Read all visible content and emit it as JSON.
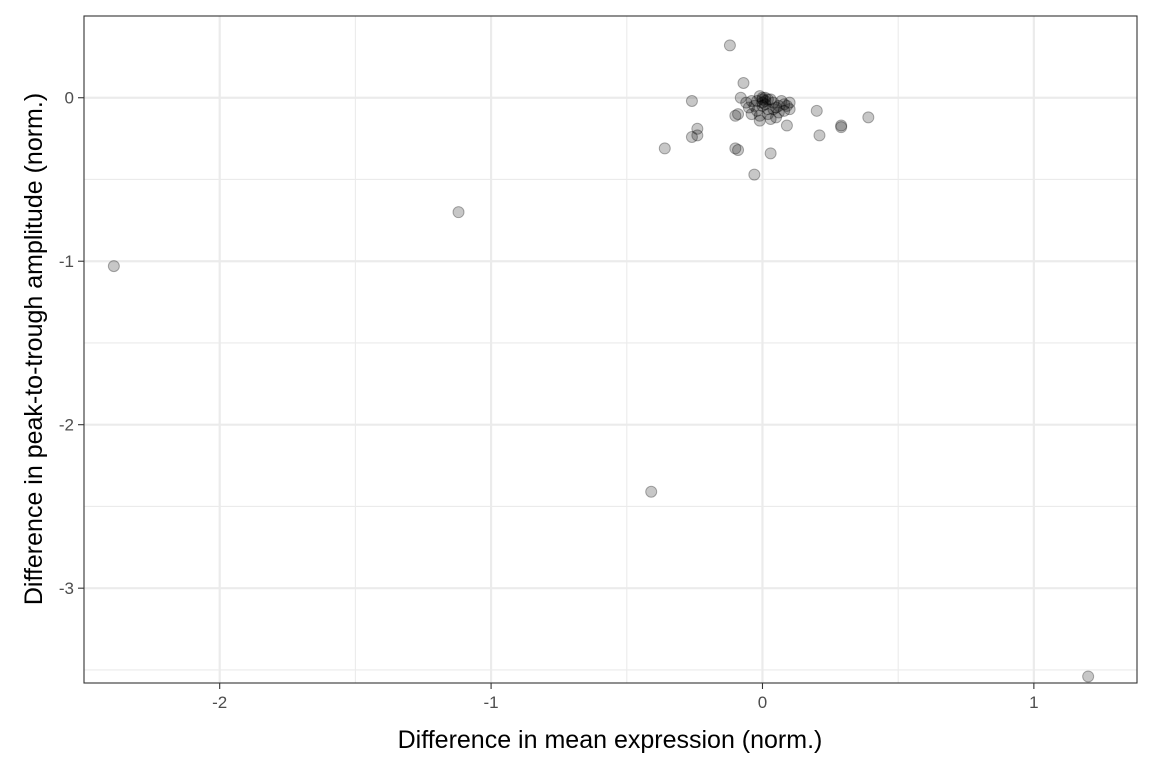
{
  "chart_data": {
    "type": "scatter",
    "title": "",
    "xlabel": "Difference in mean expression (norm.)",
    "ylabel": "Difference in peak-to-trough amplitude (norm.)",
    "xlim": [
      -2.5,
      1.38
    ],
    "ylim": [
      -3.58,
      0.5
    ],
    "x_ticks": [
      -2,
      -1,
      0,
      1
    ],
    "x_tick_labels": [
      "-2",
      "-1",
      "0",
      "1"
    ],
    "y_ticks": [
      0,
      -1,
      -2,
      -3
    ],
    "y_tick_labels": [
      "0",
      "-1",
      "-2",
      "-3"
    ],
    "x_minor_breaks": [
      -2.5,
      -1.5,
      -0.5,
      0.5
    ],
    "y_minor_breaks": [
      0.5,
      -0.5,
      -1.5,
      -2.5,
      -3.5
    ],
    "grid": true,
    "theme": "bw",
    "colors": {
      "point_fill": "#000000",
      "point_opacity": "0.22",
      "grid": "#ebebeb",
      "border": "#333333"
    },
    "series": [
      {
        "points": [
          [
            -2.39,
            -1.03
          ],
          [
            -1.12,
            -0.7
          ],
          [
            -0.41,
            -2.41
          ],
          [
            1.2,
            -3.54
          ],
          [
            -0.12,
            0.32
          ],
          [
            -0.07,
            0.09
          ],
          [
            -0.26,
            -0.02
          ],
          [
            -0.24,
            -0.19
          ],
          [
            -0.26,
            -0.24
          ],
          [
            -0.24,
            -0.23
          ],
          [
            -0.36,
            -0.31
          ],
          [
            -0.1,
            -0.31
          ],
          [
            -0.09,
            -0.32
          ],
          [
            0.03,
            -0.34
          ],
          [
            -0.03,
            -0.47
          ],
          [
            0.2,
            -0.08
          ],
          [
            0.21,
            -0.23
          ],
          [
            0.29,
            -0.17
          ],
          [
            0.29,
            -0.18
          ],
          [
            0.39,
            -0.12
          ],
          [
            0.09,
            -0.17
          ],
          [
            -0.08,
            0.0
          ],
          [
            -0.1,
            -0.11
          ],
          [
            -0.09,
            -0.1
          ],
          [
            -0.06,
            -0.03
          ],
          [
            -0.05,
            -0.06
          ],
          [
            -0.04,
            -0.02
          ],
          [
            -0.03,
            -0.05
          ],
          [
            -0.02,
            -0.08
          ],
          [
            -0.01,
            -0.11
          ],
          [
            -0.01,
            -0.14
          ],
          [
            0.0,
            -0.01
          ],
          [
            0.0,
            -0.03
          ],
          [
            0.0,
            0.0
          ],
          [
            0.01,
            -0.02
          ],
          [
            0.01,
            -0.04
          ],
          [
            0.02,
            -0.07
          ],
          [
            0.02,
            -0.1
          ],
          [
            0.03,
            -0.13
          ],
          [
            0.03,
            -0.01
          ],
          [
            0.04,
            -0.03
          ],
          [
            0.05,
            -0.06
          ],
          [
            0.05,
            -0.12
          ],
          [
            0.06,
            -0.09
          ],
          [
            0.07,
            -0.02
          ],
          [
            0.08,
            -0.04
          ],
          [
            0.09,
            -0.05
          ],
          [
            0.1,
            -0.07
          ],
          [
            0.1,
            -0.03
          ],
          [
            -0.01,
            0.01
          ],
          [
            0.01,
            0.0
          ],
          [
            0.0,
            -0.05
          ],
          [
            -0.02,
            -0.02
          ],
          [
            0.02,
            -0.01
          ],
          [
            0.04,
            -0.07
          ],
          [
            0.06,
            -0.05
          ],
          [
            -0.04,
            -0.1
          ],
          [
            0.08,
            -0.08
          ]
        ]
      }
    ]
  }
}
